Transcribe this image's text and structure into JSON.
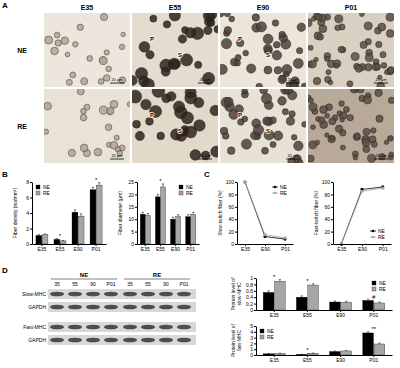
{
  "panel_labels": [
    "A",
    "B",
    "C",
    "D"
  ],
  "micrographs": {
    "columns": [
      "E35",
      "E55",
      "E90",
      "P01"
    ],
    "rows": [
      "NE",
      "RE"
    ],
    "markers": [
      "P",
      "S"
    ],
    "scale_bar": "20 μm"
  },
  "blot": {
    "groups": [
      "NE",
      "RE"
    ],
    "lanes": [
      "35",
      "55",
      "90",
      "P01"
    ],
    "rows": [
      "Slow-MHC",
      "GAPDH",
      "Fast-MHC",
      "GAPDH"
    ]
  },
  "chart_data": [
    {
      "type": "bar",
      "y_label": "Fiber density (no/mm²)",
      "categories": [
        "E35",
        "E55",
        "E90",
        "P01"
      ],
      "series": [
        {
          "name": "NE",
          "color": "#000000",
          "values": [
            1.1,
            0.6,
            4.1,
            7.0
          ],
          "errors": [
            0.1,
            0.1,
            0.3,
            0.3
          ]
        },
        {
          "name": "RE",
          "color": "#a6a6a6",
          "values": [
            1.2,
            0.4,
            3.6,
            7.6
          ],
          "errors": [
            0.1,
            0.05,
            0.3,
            0.3
          ]
        }
      ],
      "annotations": [
        null,
        "*",
        null,
        "*"
      ],
      "ylim": [
        0,
        8
      ],
      "yticks": [
        0,
        2,
        4,
        6,
        8
      ],
      "legend": "top-left"
    },
    {
      "type": "bar",
      "y_label": "Fiber diameter (μm)",
      "categories": [
        "E35",
        "E55",
        "E90",
        "P01"
      ],
      "series": [
        {
          "name": "NE",
          "color": "#000000",
          "values": [
            12,
            19,
            10,
            11
          ],
          "errors": [
            0.8,
            1,
            0.8,
            0.8
          ]
        },
        {
          "name": "RE",
          "color": "#a6a6a6",
          "values": [
            11.5,
            23,
            11,
            12
          ],
          "errors": [
            0.8,
            1.2,
            0.8,
            0.8
          ]
        }
      ],
      "annotations": [
        null,
        "*",
        null,
        null
      ],
      "ylim": [
        0,
        25
      ],
      "yticks": [
        0,
        5,
        10,
        15,
        20,
        25
      ],
      "legend": "top-right"
    },
    {
      "type": "line",
      "y_label": "Slow-twitch fiber (%)",
      "categories": [
        "E35",
        "E90",
        "P01"
      ],
      "series": [
        {
          "name": "NE",
          "color": "#000000",
          "marker": "circle",
          "values": [
            100,
            12,
            8
          ]
        },
        {
          "name": "RE",
          "color": "#a6a6a6",
          "marker": "circle",
          "values": [
            100,
            15,
            10
          ]
        }
      ],
      "ylim": [
        0,
        100
      ],
      "yticks": [
        0,
        20,
        40,
        60,
        80,
        100
      ],
      "legend": "top-right"
    },
    {
      "type": "line",
      "y_label": "Fast-twitch fiber (%)",
      "categories": [
        "E35",
        "E90",
        "P01"
      ],
      "series": [
        {
          "name": "NE",
          "color": "#000000",
          "marker": "circle",
          "values": [
            0,
            88,
            92
          ]
        },
        {
          "name": "RE",
          "color": "#a6a6a6",
          "marker": "circle",
          "values": [
            0,
            85,
            90
          ]
        }
      ],
      "ylim": [
        0,
        100
      ],
      "yticks": [
        0,
        20,
        40,
        60,
        80,
        100
      ],
      "legend": "bottom-right"
    },
    {
      "type": "bar",
      "y_label": "Protein level of slow-MHC",
      "categories": [
        "E35",
        "E55",
        "E90",
        "P01"
      ],
      "series": [
        {
          "name": "NE",
          "color": "#000000",
          "values": [
            0.55,
            0.4,
            0.25,
            0.3
          ],
          "errors": [
            0.05,
            0.04,
            0.03,
            0.04
          ]
        },
        {
          "name": "RE",
          "color": "#a6a6a6",
          "values": [
            0.9,
            0.78,
            0.24,
            0.22
          ],
          "errors": [
            0.05,
            0.04,
            0.03,
            0.03
          ]
        }
      ],
      "annotations": [
        "*",
        "*",
        null,
        "#"
      ],
      "ylim": [
        0,
        1
      ],
      "yticks": [
        0,
        0.2,
        0.4,
        0.6,
        0.8,
        1
      ],
      "legend": "top-right"
    },
    {
      "type": "bar",
      "y_label": "Protein level of fast-MHC",
      "categories": [
        "E35",
        "E55",
        "E90",
        "P01"
      ],
      "series": [
        {
          "name": "NE",
          "color": "#000000",
          "values": [
            0.2,
            0.1,
            0.6,
            3.8
          ],
          "errors": [
            0.05,
            0.03,
            0.08,
            0.2
          ]
        },
        {
          "name": "RE",
          "color": "#a6a6a6",
          "values": [
            0.25,
            0.3,
            0.7,
            1.9
          ],
          "errors": [
            0.05,
            0.05,
            0.08,
            0.15
          ]
        }
      ],
      "annotations": [
        null,
        "*",
        null,
        "**"
      ],
      "ylim": [
        0,
        5
      ],
      "yticks": [
        0,
        1,
        2,
        3,
        4,
        5
      ],
      "legend": "top-left"
    }
  ]
}
